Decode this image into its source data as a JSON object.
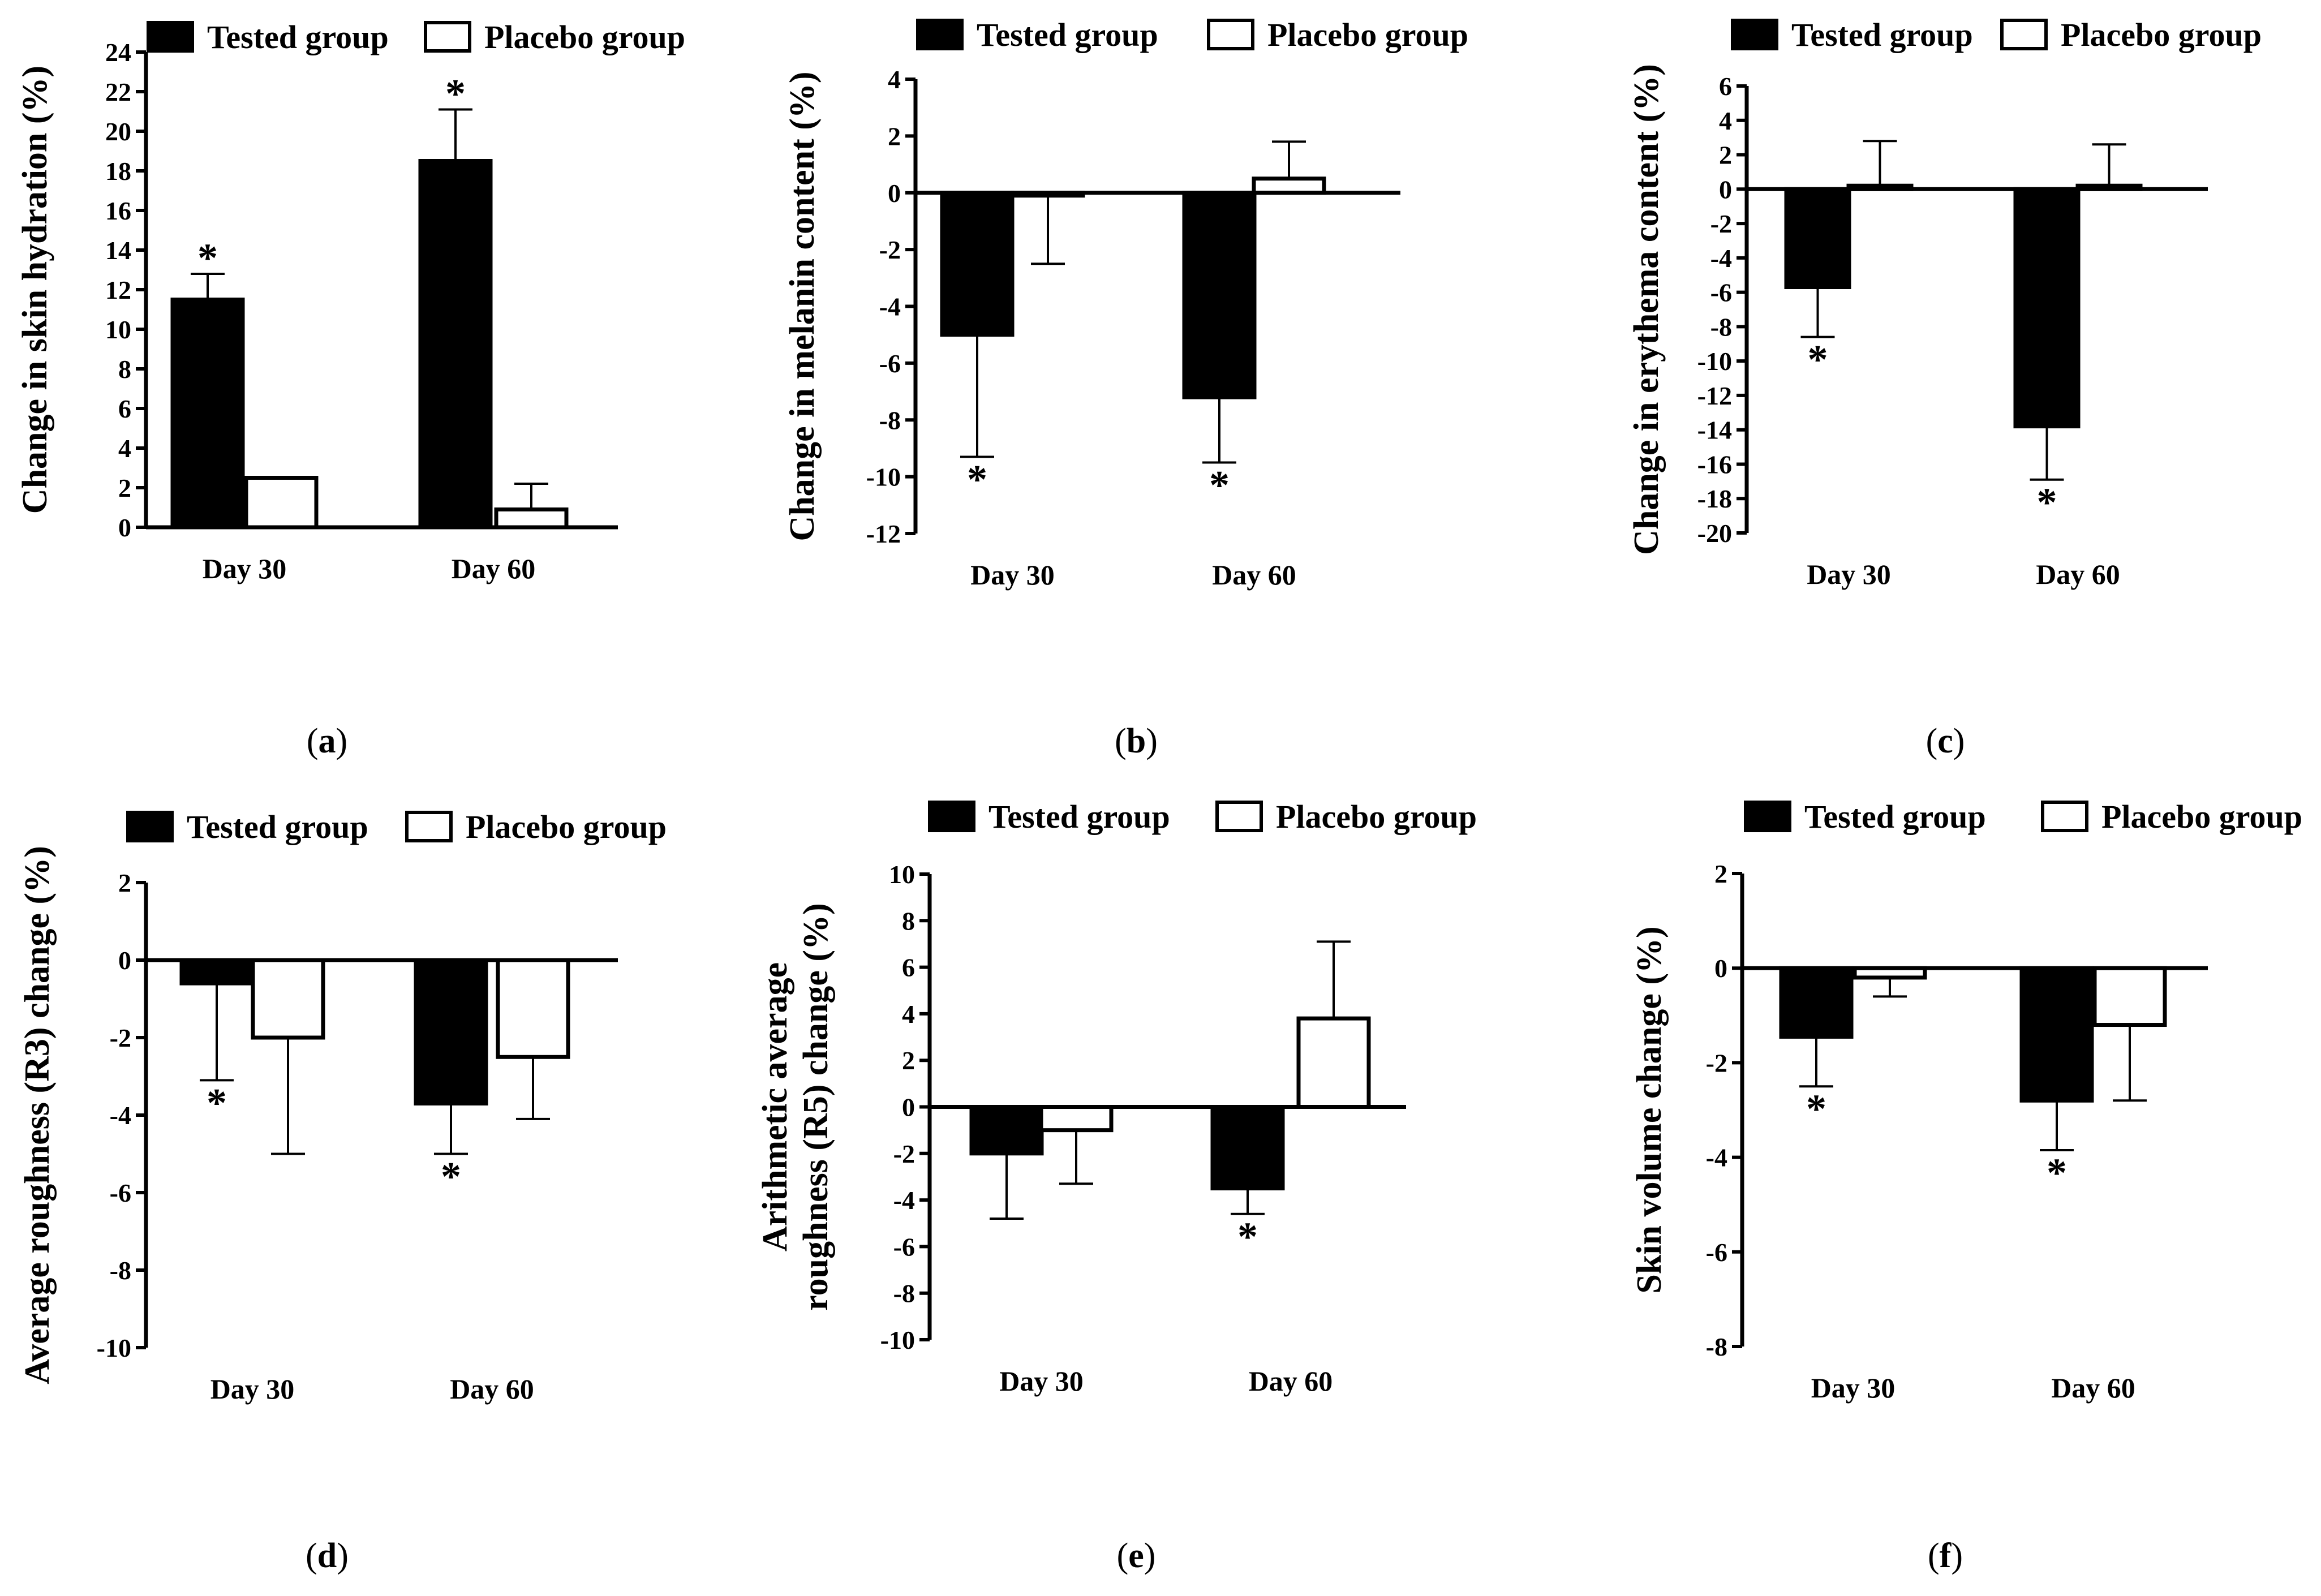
{
  "figure": {
    "legend": {
      "tested": "Tested group",
      "placebo": "Placebo group"
    },
    "colors": {
      "tested": "#000000",
      "placebo": "#ffffff",
      "axis": "#000000"
    }
  },
  "chart_data": [
    {
      "type": "bar",
      "panel": "(a)",
      "panel_letter": "a",
      "ylabel": "Change in skin hydration (%)",
      "categories": [
        "Day 30",
        "Day 60"
      ],
      "ylim": [
        0,
        24
      ],
      "yticks": [
        0,
        2,
        4,
        6,
        8,
        10,
        12,
        14,
        16,
        18,
        20,
        22,
        24
      ],
      "series": [
        {
          "name": "Tested group",
          "values": [
            11.5,
            18.5
          ],
          "errors": [
            1.3,
            2.6
          ],
          "significant": [
            true,
            true
          ]
        },
        {
          "name": "Placebo group",
          "values": [
            2.5,
            0.9
          ],
          "errors": [
            0,
            1.3
          ],
          "significant": [
            false,
            false
          ]
        }
      ],
      "significance_mark": "*"
    },
    {
      "type": "bar",
      "panel": "(b)",
      "panel_letter": "b",
      "ylabel": "Change in melanin content (%)",
      "categories": [
        "Day 30",
        "Day 60"
      ],
      "ylim": [
        -12,
        4
      ],
      "yticks": [
        -12,
        -10,
        -8,
        -6,
        -4,
        -2,
        0,
        2,
        4
      ],
      "series": [
        {
          "name": "Tested group",
          "values": [
            -5.0,
            -7.2
          ],
          "errors": [
            4.3,
            2.3
          ],
          "significant": [
            true,
            true
          ]
        },
        {
          "name": "Placebo group",
          "values": [
            -0.1,
            0.5
          ],
          "errors": [
            2.4,
            1.3
          ],
          "significant": [
            false,
            false
          ]
        }
      ],
      "significance_mark": "*"
    },
    {
      "type": "bar",
      "panel": "(c)",
      "panel_letter": "c",
      "ylabel": "Change in erythema content (%)",
      "categories": [
        "Day 30",
        "Day 60"
      ],
      "ylim": [
        -20,
        6
      ],
      "yticks": [
        -20,
        -18,
        -16,
        -14,
        -12,
        -10,
        -8,
        -6,
        -4,
        -2,
        0,
        2,
        4,
        6
      ],
      "series": [
        {
          "name": "Tested group",
          "values": [
            -5.7,
            -13.8
          ],
          "errors": [
            2.9,
            3.1
          ],
          "significant": [
            true,
            true
          ]
        },
        {
          "name": "Placebo group",
          "values": [
            0.2,
            0.2
          ],
          "errors": [
            2.6,
            2.4
          ],
          "significant": [
            false,
            false
          ]
        }
      ],
      "significance_mark": "*"
    },
    {
      "type": "bar",
      "panel": "(d)",
      "panel_letter": "d",
      "ylabel": "Average roughness (R3) change (%)",
      "categories": [
        "Day 30",
        "Day 60"
      ],
      "ylim": [
        -10,
        2
      ],
      "yticks": [
        -10,
        -8,
        -6,
        -4,
        -2,
        0,
        2
      ],
      "series": [
        {
          "name": "Tested group",
          "values": [
            -0.6,
            -3.7
          ],
          "errors": [
            2.5,
            1.3
          ],
          "significant": [
            true,
            true
          ]
        },
        {
          "name": "Placebo group",
          "values": [
            -2.0,
            -2.5
          ],
          "errors": [
            3.0,
            1.6
          ],
          "significant": [
            false,
            false
          ]
        }
      ],
      "significance_mark": "*"
    },
    {
      "type": "bar",
      "panel": "(e)",
      "panel_letter": "e",
      "ylabel": "Arithmetic average roughness (R5) change (%)",
      "ylabel_lines": [
        "Arithmetic average",
        "roughness (R5) change (%)"
      ],
      "categories": [
        "Day 30",
        "Day 60"
      ],
      "ylim": [
        -10,
        10
      ],
      "yticks": [
        -10,
        -8,
        -6,
        -4,
        -2,
        0,
        2,
        4,
        6,
        8,
        10
      ],
      "series": [
        {
          "name": "Tested group",
          "values": [
            -2.0,
            -3.5
          ],
          "errors": [
            2.8,
            1.1
          ],
          "significant": [
            false,
            true
          ]
        },
        {
          "name": "Placebo group",
          "values": [
            -1.0,
            3.8
          ],
          "errors": [
            2.3,
            3.3
          ],
          "significant": [
            false,
            false
          ]
        }
      ],
      "significance_mark": "*"
    },
    {
      "type": "bar",
      "panel": "(f)",
      "panel_letter": "f",
      "ylabel": "Skin volume change (%)",
      "categories": [
        "Day 30",
        "Day 60"
      ],
      "ylim": [
        -8,
        2
      ],
      "yticks": [
        -8,
        -6,
        -4,
        -2,
        0,
        2
      ],
      "series": [
        {
          "name": "Tested group",
          "values": [
            -1.45,
            -2.8
          ],
          "errors": [
            1.05,
            1.05
          ],
          "significant": [
            true,
            true
          ]
        },
        {
          "name": "Placebo group",
          "values": [
            -0.2,
            -1.2
          ],
          "errors": [
            0.4,
            1.6
          ],
          "significant": [
            false,
            false
          ]
        }
      ],
      "significance_mark": "*"
    }
  ]
}
